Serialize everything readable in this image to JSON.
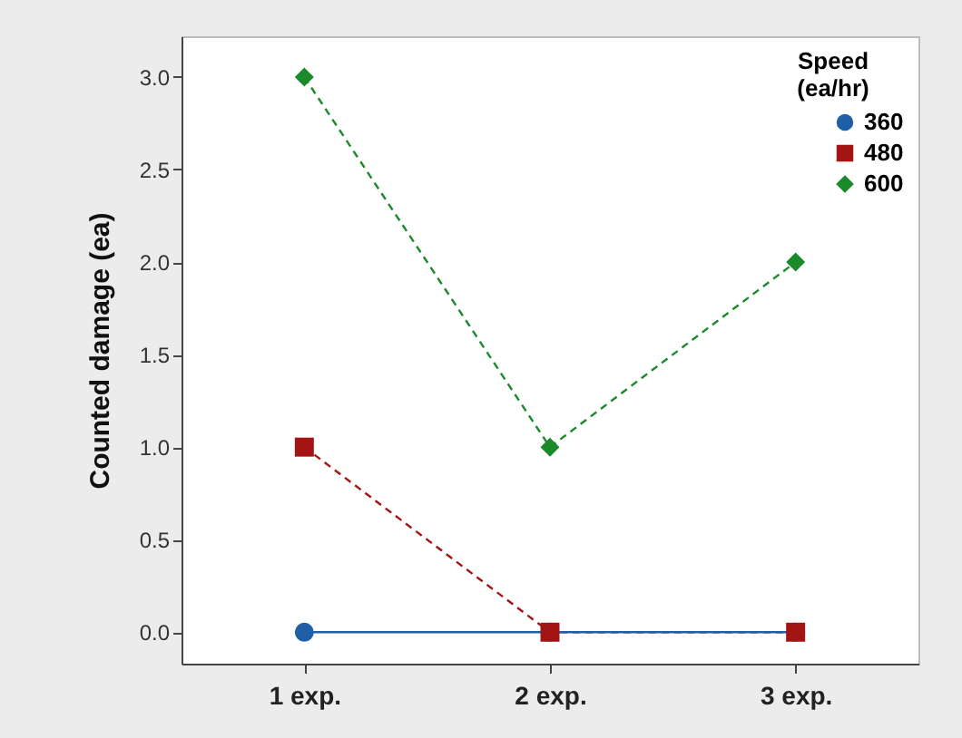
{
  "chart_data": {
    "type": "line",
    "ylabel": "Counted damage (ea)",
    "legend_title": "Speed (ea/hr)",
    "legend": "top right",
    "grid": false,
    "categories": [
      "1 exp.",
      "2 exp.",
      "3 exp."
    ],
    "ylim": [
      -0.17,
      3.22
    ],
    "yticks": [
      {
        "value": 0,
        "label": "0.0"
      },
      {
        "value": 0.5,
        "label": "0.5"
      },
      {
        "value": 1,
        "label": "1.0"
      },
      {
        "value": 1.5,
        "label": "1.5"
      },
      {
        "value": 2,
        "label": "2.0"
      },
      {
        "value": 2.5,
        "label": "2.5"
      },
      {
        "value": 3,
        "label": "3.0"
      }
    ],
    "series": [
      {
        "name": "360",
        "color": "#1f5fa8",
        "marker": "circle",
        "line_style": "solid",
        "values": [
          0,
          0,
          0
        ]
      },
      {
        "name": "480",
        "color": "#a31515",
        "marker": "square",
        "line_style": "dashed",
        "values": [
          1,
          0,
          0
        ]
      },
      {
        "name": "600",
        "color": "#1a8a2a",
        "marker": "diamond",
        "line_style": "dashed",
        "values": [
          3,
          1,
          2
        ]
      }
    ]
  }
}
